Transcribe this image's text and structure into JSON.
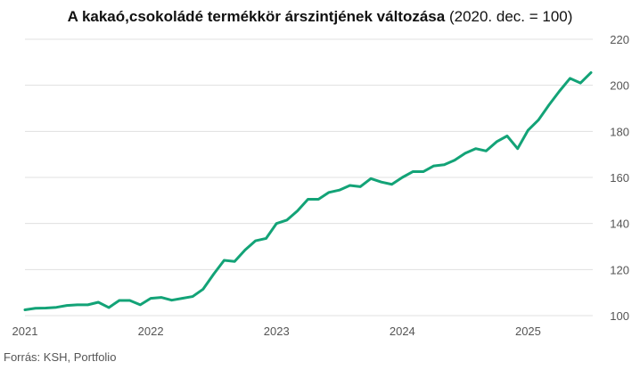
{
  "title": {
    "bold": "A kakaó,csokoládé termékkör árszintjének változása",
    "normal": "(2020. dec. = 100)"
  },
  "source": "Forrás: KSH, Portfolio",
  "colors": {
    "line": "#13a377",
    "grid": "#e0e0e0",
    "text": "#555555"
  },
  "chart_data": {
    "type": "line",
    "title": "A kakaó,csokoládé termékkör árszintjének változása (2020. dec. = 100)",
    "xlabel": "",
    "ylabel": "",
    "x_ticks": [
      "2021",
      "2022",
      "2023",
      "2024",
      "2025"
    ],
    "y_ticks": [
      100,
      120,
      140,
      160,
      180,
      200,
      220
    ],
    "ylim": [
      100,
      220
    ],
    "y_axis_side": "right",
    "grid": "horizontal",
    "x": [
      "2021-01",
      "2021-02",
      "2021-03",
      "2021-04",
      "2021-05",
      "2021-06",
      "2021-07",
      "2021-08",
      "2021-09",
      "2021-10",
      "2021-11",
      "2021-12",
      "2022-01",
      "2022-02",
      "2022-03",
      "2022-04",
      "2022-05",
      "2022-06",
      "2022-07",
      "2022-08",
      "2022-09",
      "2022-10",
      "2022-11",
      "2022-12",
      "2023-01",
      "2023-02",
      "2023-03",
      "2023-04",
      "2023-05",
      "2023-06",
      "2023-07",
      "2023-08",
      "2023-09",
      "2023-10",
      "2023-11",
      "2023-12",
      "2024-01",
      "2024-02",
      "2024-03",
      "2024-04",
      "2024-05",
      "2024-06",
      "2024-07",
      "2024-08",
      "2024-09",
      "2024-10",
      "2024-11",
      "2024-12",
      "2025-01",
      "2025-02",
      "2025-03",
      "2025-04",
      "2025-05",
      "2025-06",
      "2025-07"
    ],
    "series": [
      {
        "values": [
          102.5,
          103.2,
          103.3,
          103.6,
          104.4,
          104.7,
          104.7,
          105.8,
          103.5,
          106.6,
          106.6,
          104.7,
          107.5,
          107.9,
          106.7,
          107.5,
          108.3,
          111.5,
          118.0,
          124.0,
          123.5,
          128.5,
          132.5,
          133.5,
          140.0,
          141.5,
          145.5,
          150.5,
          150.5,
          153.5,
          154.5,
          156.5,
          156.0,
          159.5,
          158.0,
          157.0,
          160.0,
          162.5,
          162.5,
          165.0,
          165.5,
          167.5,
          170.5,
          172.5,
          171.5,
          175.5,
          178.0,
          172.5,
          180.5,
          185.0,
          191.5,
          197.5,
          203.0,
          201.0,
          205.5
        ]
      }
    ]
  }
}
